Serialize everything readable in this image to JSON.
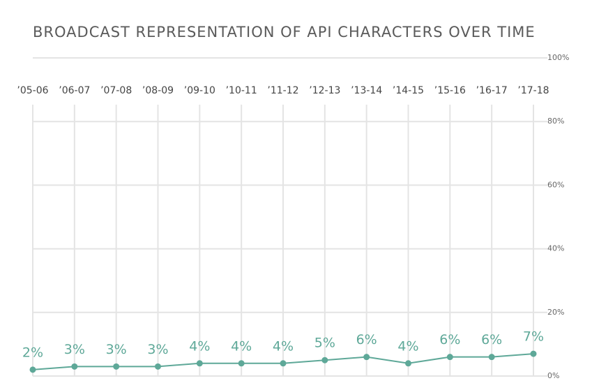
{
  "chart_data": {
    "type": "line",
    "title": "BROADCAST REPRESENTATION OF API CHARACTERS OVER TIME",
    "categories": [
      "’05-06",
      "’06-07",
      "’07-08",
      "’08-09",
      "’09-10",
      "’10-11",
      "’11-12",
      "’12-13",
      "’13-14",
      "’14-15",
      "’15-16",
      "’16-17",
      "’17-18"
    ],
    "series": [
      {
        "name": "API characters",
        "color": "#5ea898",
        "values": [
          2,
          3,
          3,
          3,
          4,
          4,
          4,
          5,
          6,
          4,
          6,
          6,
          7
        ],
        "value_labels": [
          "2%",
          "3%",
          "3%",
          "3%",
          "4%",
          "4%",
          "4%",
          "5%",
          "6%",
          "4%",
          "6%",
          "6%",
          "7%"
        ]
      }
    ],
    "ylim": [
      0,
      100
    ],
    "yticks": [
      {
        "value": 0,
        "label": "0%"
      },
      {
        "value": 20,
        "label": "20%"
      },
      {
        "value": 40,
        "label": "40%"
      },
      {
        "value": 60,
        "label": "60%"
      },
      {
        "value": 80,
        "label": "80%"
      },
      {
        "value": 100,
        "label": "100%"
      }
    ],
    "grid": true,
    "y_axis_side": "right"
  }
}
